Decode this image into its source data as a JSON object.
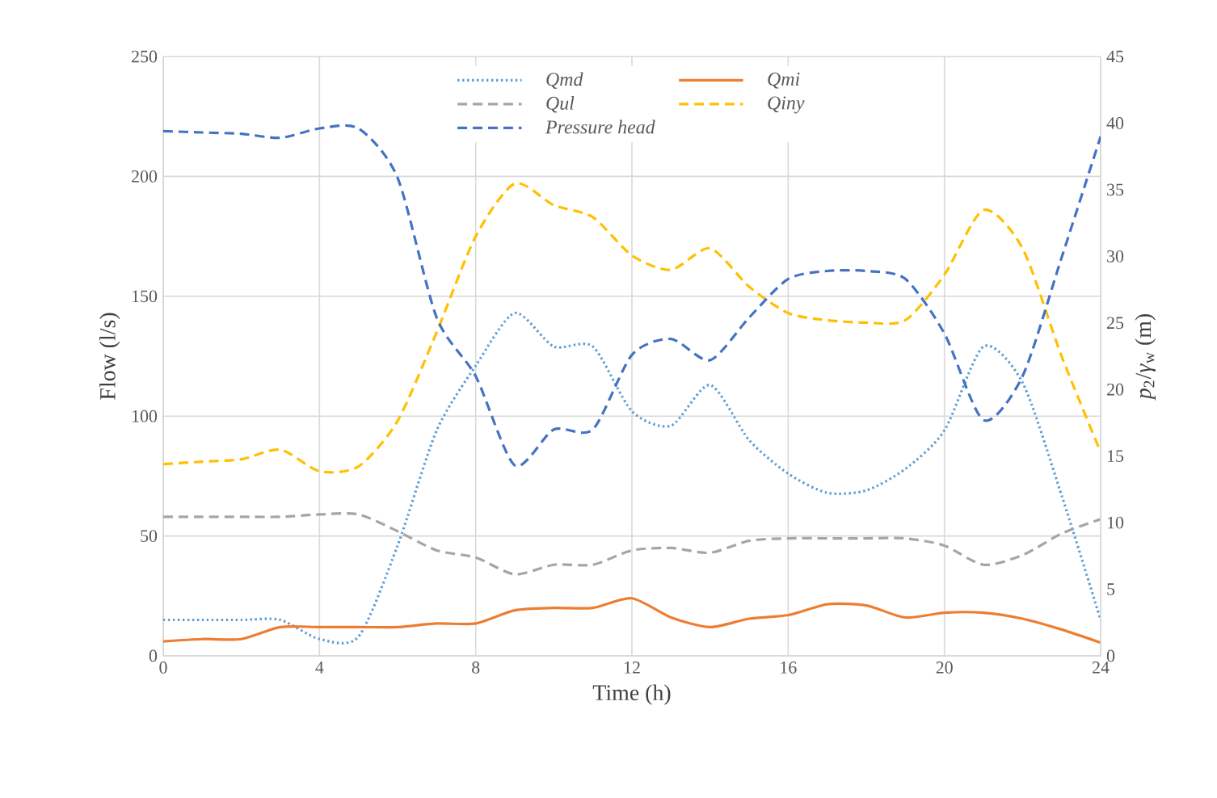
{
  "chart_data": {
    "type": "line",
    "xlabel": "Time (h)",
    "ylabel": "Flow (l/s)",
    "y2label": "*p*$_{2}$/*γ*$_{w}$ (m)",
    "x": [
      0,
      1,
      2,
      3,
      4,
      5,
      6,
      7,
      8,
      9,
      10,
      11,
      12,
      13,
      14,
      15,
      16,
      17,
      18,
      19,
      20,
      21,
      22,
      23,
      24
    ],
    "xlim": [
      0,
      24
    ],
    "xticks": [
      0,
      4,
      8,
      12,
      16,
      20,
      24
    ],
    "ylim": [
      0,
      250
    ],
    "yticks": [
      0,
      50,
      100,
      150,
      200,
      250
    ],
    "y2lim": [
      0,
      45
    ],
    "y2ticks": [
      0,
      5,
      10,
      15,
      20,
      25,
      30,
      35,
      40,
      45
    ],
    "grid": true,
    "legend": "top",
    "marker": "none",
    "series": [
      {
        "name": "Qmd",
        "color": "#5b9bd5",
        "line_style": "dotted",
        "values": [
          15,
          15,
          15,
          15,
          7,
          8,
          46,
          94,
          121,
          143,
          129,
          129,
          102,
          96,
          113,
          90,
          76,
          68,
          69,
          78,
          94,
          129,
          114,
          67,
          15
        ]
      },
      {
        "name": "Qmi",
        "color": "#ed7d31",
        "line_style": "solid",
        "values": [
          6,
          7,
          7,
          12,
          12,
          12,
          12,
          13.5,
          13.5,
          19,
          20,
          20,
          24,
          16,
          12,
          15.5,
          17,
          21.5,
          21,
          16,
          18,
          18,
          15.5,
          11,
          5.5
        ]
      },
      {
        "name": "Qul",
        "color": "#a5a5a5",
        "line_style": "dashed",
        "values": [
          58,
          58,
          58,
          58,
          59,
          59,
          52,
          44,
          41,
          34,
          38,
          38,
          44,
          45,
          43,
          48,
          49,
          49,
          49,
          49,
          46,
          38,
          42,
          51,
          57
        ]
      },
      {
        "name": "Qiny",
        "color": "#ffc000",
        "line_style": "dashed",
        "values": [
          80,
          81,
          82,
          86,
          77,
          79,
          98,
          135,
          175,
          197,
          188,
          183,
          167,
          161,
          170,
          154,
          143,
          140,
          139,
          140,
          159,
          186,
          170,
          125,
          85
        ]
      },
      {
        "name": "Pressure head",
        "color": "#4472c4",
        "line_style": "dashed",
        "axis": "y2",
        "values": [
          39.4,
          39.3,
          39.2,
          38.9,
          39.6,
          39.6,
          35.9,
          25.4,
          21,
          14.3,
          17,
          17,
          22.6,
          23.8,
          22.2,
          25.4,
          28.3,
          28.9,
          28.9,
          28.3,
          24.2,
          17.7,
          21,
          29.9,
          39
        ]
      }
    ]
  }
}
